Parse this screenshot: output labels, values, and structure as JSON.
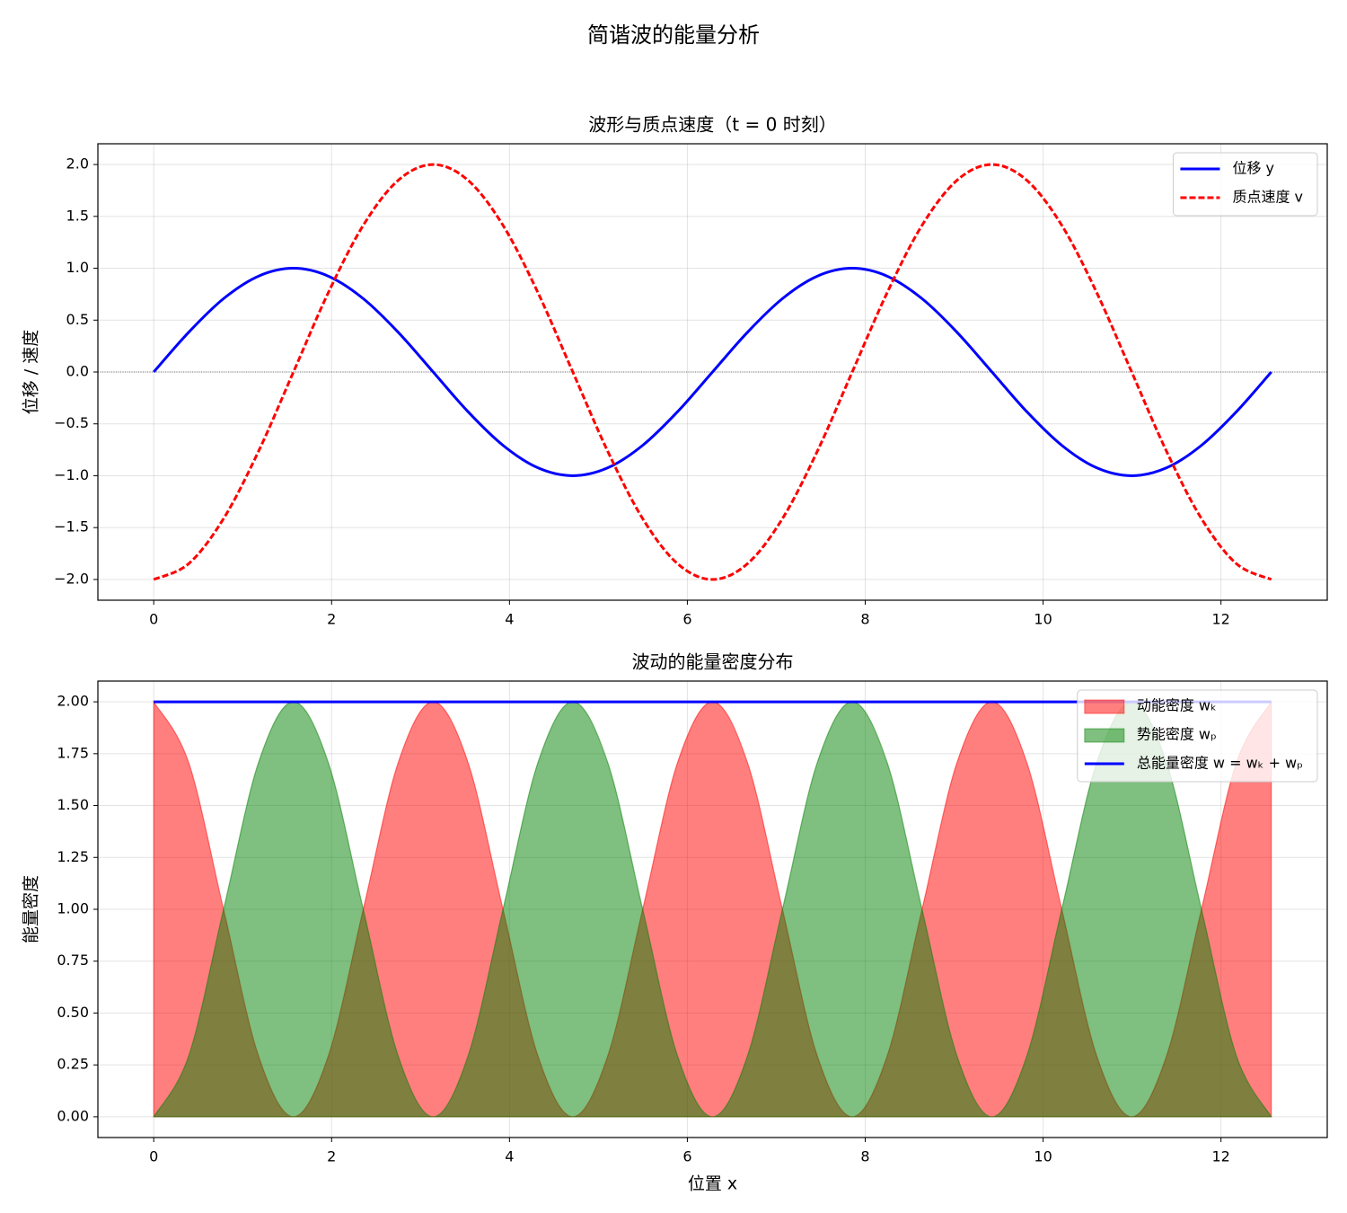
{
  "title": "简谐波的能量分析",
  "chart_data": [
    {
      "type": "line",
      "title": "波形与质点速度（t = 0 时刻）",
      "ylabel": "位移 / 速度",
      "x": [
        0,
        0.393,
        0.785,
        1.178,
        1.571,
        1.963,
        2.356,
        2.749,
        3.142,
        3.534,
        3.927,
        4.32,
        4.712,
        5.105,
        5.498,
        5.89,
        6.283,
        6.676,
        7.069,
        7.461,
        7.854,
        8.247,
        8.639,
        9.032,
        9.425,
        9.817,
        10.21,
        10.603,
        10.996,
        11.388,
        11.781,
        12.174,
        12.566
      ],
      "series": [
        {
          "name": "位移 y",
          "color": "#0000ff",
          "style": "solid",
          "values": [
            0,
            0.383,
            0.707,
            0.924,
            1,
            0.924,
            0.707,
            0.383,
            0,
            -0.383,
            -0.707,
            -0.924,
            -1,
            -0.924,
            -0.707,
            -0.383,
            0,
            0.383,
            0.707,
            0.924,
            1,
            0.924,
            0.707,
            0.383,
            0,
            -0.383,
            -0.707,
            -0.924,
            -1,
            -0.924,
            -0.707,
            -0.383,
            0
          ]
        },
        {
          "name": "质点速度 v",
          "color": "#ff0000",
          "style": "dashed",
          "values": [
            -2,
            -1.848,
            -1.414,
            -0.765,
            0,
            0.765,
            1.414,
            1.848,
            2,
            1.848,
            1.414,
            0.765,
            0,
            -0.765,
            -1.414,
            -1.848,
            -2,
            -1.848,
            -1.414,
            -0.765,
            0,
            0.765,
            1.414,
            1.848,
            2,
            1.848,
            1.414,
            0.765,
            0,
            -0.765,
            -1.414,
            -1.848,
            -2
          ]
        }
      ],
      "xlim": [
        -0.628,
        13.195
      ],
      "xticks": [
        0,
        2,
        4,
        6,
        8,
        10,
        12
      ],
      "ylim": [
        -2.2,
        2.2
      ],
      "yticks": [
        {
          "value": -2,
          "label": "−2.0"
        },
        {
          "value": -1.5,
          "label": "−1.5"
        },
        {
          "value": -1,
          "label": "−1.0"
        },
        {
          "value": -0.5,
          "label": "−0.5"
        },
        {
          "value": 0,
          "label": "0.0"
        },
        {
          "value": 0.5,
          "label": "0.5"
        },
        {
          "value": 1,
          "label": "1.0"
        },
        {
          "value": 1.5,
          "label": "1.5"
        },
        {
          "value": 2,
          "label": "2.0"
        }
      ],
      "grid": true,
      "zero_line": true,
      "legend": "upper right"
    },
    {
      "type": "area",
      "title": "波动的能量密度分布",
      "ylabel": "能量密度",
      "xlabel": "位置 x",
      "x": [
        0,
        0.393,
        0.785,
        1.178,
        1.571,
        1.963,
        2.356,
        2.749,
        3.142,
        3.534,
        3.927,
        4.32,
        4.712,
        5.105,
        5.498,
        5.89,
        6.283,
        6.676,
        7.069,
        7.461,
        7.854,
        8.247,
        8.639,
        9.032,
        9.425,
        9.817,
        10.21,
        10.603,
        10.996,
        11.388,
        11.781,
        12.174,
        12.566
      ],
      "series": [
        {
          "name": "动能密度 wₖ",
          "color": "#ff0000",
          "fill": true,
          "values": [
            2,
            1.707,
            1,
            0.293,
            0,
            0.293,
            1,
            1.707,
            2,
            1.707,
            1,
            0.293,
            0,
            0.293,
            1,
            1.707,
            2,
            1.707,
            1,
            0.293,
            0,
            0.293,
            1,
            1.707,
            2,
            1.707,
            1,
            0.293,
            0,
            0.293,
            1,
            1.707,
            2
          ]
        },
        {
          "name": "势能密度 wₚ",
          "color": "#008000",
          "fill": true,
          "values": [
            0,
            0.293,
            1,
            1.707,
            2,
            1.707,
            1,
            0.293,
            0,
            0.293,
            1,
            1.707,
            2,
            1.707,
            1,
            0.293,
            0,
            0.293,
            1,
            1.707,
            2,
            1.707,
            1,
            0.293,
            0,
            0.293,
            1,
            1.707,
            2,
            1.707,
            1,
            0.293,
            0
          ]
        },
        {
          "name": "总能量密度 w = wₖ + wₚ",
          "color": "#0000ff",
          "fill": false,
          "values": [
            2,
            2,
            2,
            2,
            2,
            2,
            2,
            2,
            2,
            2,
            2,
            2,
            2,
            2,
            2,
            2,
            2,
            2,
            2,
            2,
            2,
            2,
            2,
            2,
            2,
            2,
            2,
            2,
            2,
            2,
            2,
            2,
            2
          ]
        }
      ],
      "xlim": [
        -0.628,
        13.195
      ],
      "xticks": [
        0,
        2,
        4,
        6,
        8,
        10,
        12
      ],
      "ylim": [
        -0.1,
        2.1
      ],
      "yticks": [
        {
          "value": 0,
          "label": "0.00"
        },
        {
          "value": 0.25,
          "label": "0.25"
        },
        {
          "value": 0.5,
          "label": "0.50"
        },
        {
          "value": 0.75,
          "label": "0.75"
        },
        {
          "value": 1,
          "label": "1.00"
        },
        {
          "value": 1.25,
          "label": "1.25"
        },
        {
          "value": 1.5,
          "label": "1.50"
        },
        {
          "value": 1.75,
          "label": "1.75"
        },
        {
          "value": 2,
          "label": "2.00"
        }
      ],
      "grid": true,
      "zero_line": false,
      "legend": "upper right"
    }
  ]
}
